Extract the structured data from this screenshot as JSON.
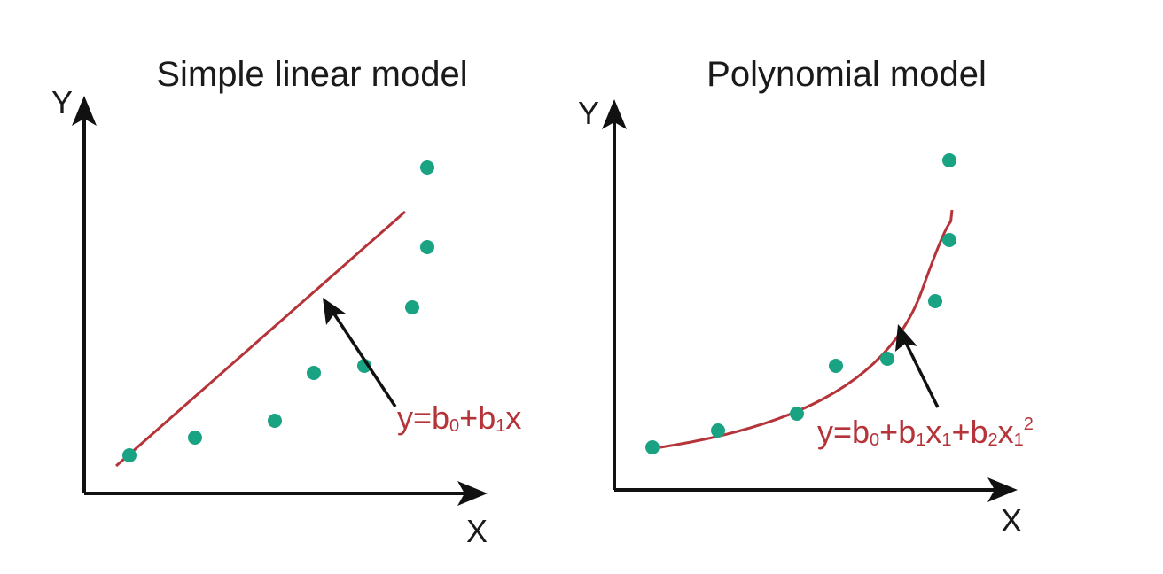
{
  "colors": {
    "axis": "#111111",
    "fit_line": "#b5343a",
    "points": "#1aa383",
    "equation": "#b5343a",
    "arrow": "#111111"
  },
  "left_panel": {
    "title": "Simple linear model",
    "y_label": "Y",
    "x_label": "X",
    "equation": {
      "p1": "y=b",
      "s1": "0",
      "p2": "+b",
      "s2": "1",
      "p3": "x"
    }
  },
  "right_panel": {
    "title": "Polynomial model",
    "y_label": "Y",
    "x_label": "X",
    "equation": {
      "p1": "y=b",
      "s1": "0",
      "p2": "+b",
      "s2": "1",
      "p3": "x",
      "s3": "1",
      "p4": "+b",
      "s4": "2",
      "p5": "x",
      "s5": "1",
      "sup": "2"
    }
  }
}
